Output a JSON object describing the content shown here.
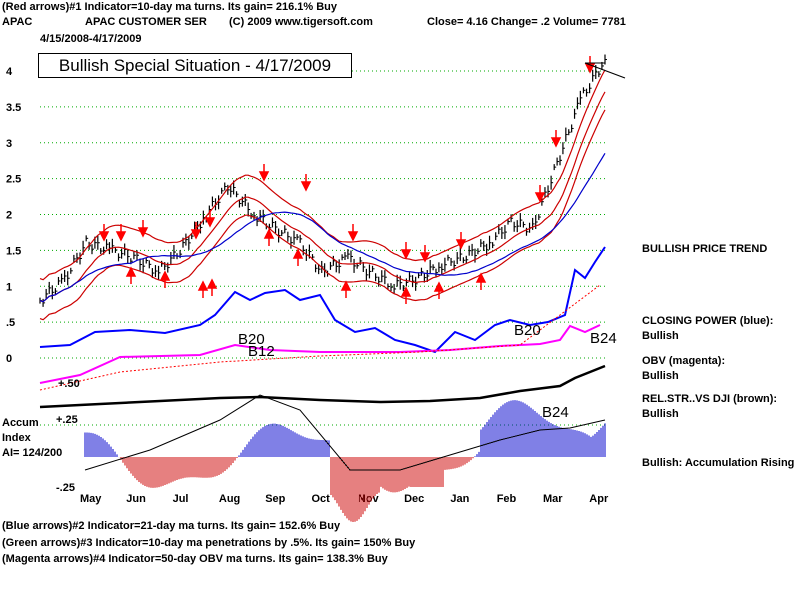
{
  "header": {
    "line1": "(Red arrows)#1 Indicator=10-day ma turns. Its gain= 216.1% Buy",
    "symbol": "APAC",
    "company": "APAC CUSTOMER SER",
    "copyright": "(C) 2009 www.tigersoft.com",
    "quote": "Close=  4.16  Change= .2 Volume= 7781",
    "date_range": "4/15/2008-4/17/2009"
  },
  "signal_box": "Bullish Special Situation - 4/17/2009",
  "footer": [
    "(Blue arrows)#2 Indicator=21-day ma turns. Its gain= 152.6% Buy",
    "(Green arrows)#3 Indicator=10-day ma penetrations by .5%. Its gain= 150% Buy",
    "(Magenta arrows)#4 Indicator=50-day OBV ma turns. Its gain= 138.3% Buy"
  ],
  "right_labels": {
    "trend": "BULLISH PRICE TREND",
    "cp_label": "CLOSING POWER (blue):",
    "cp_value": "Bullish",
    "obv_label": "OBV (magenta):",
    "obv_value": "Bullish",
    "rel_label": "REL.STR..VS DJI (brown):",
    "rel_value": "Bullish",
    "accum_status": "Bullish: Accumulation Rising"
  },
  "accum_labels": {
    "title1": "Accum",
    "title2": "Index",
    "ai": "AI= 124/200",
    "plus25": "+.25",
    "minus25": "-.25",
    "plus50": "+.50"
  },
  "signals": {
    "b20a": "B20",
    "b12": "B12",
    "b20b": "B20",
    "b24a": "B24",
    "b24b": "B24"
  },
  "colors": {
    "price_bar": "#000000",
    "ma_red": "#cc0000",
    "ma_blue": "#0000cc",
    "closing_power": "#0000ff",
    "obv": "#ff00ff",
    "rel_strength": "#000000",
    "accum_pos": "#0000cc",
    "accum_neg": "#cc0000",
    "grid": "#00aa00",
    "arrow_red": "#ff0000"
  },
  "chart_data": {
    "type": "line",
    "title": "APAC CUSTOMER SER",
    "ylabel": "",
    "y_ticks": [
      4,
      3.5,
      3,
      2.5,
      2,
      1.5,
      1,
      0.5,
      0
    ],
    "y_tick_labels": [
      "4",
      "3.5",
      "3",
      "2.5",
      "2",
      "1.5",
      "1",
      ".5",
      "0"
    ],
    "ylim": [
      0,
      4.25
    ],
    "x_ticks": [
      "May",
      "Jun",
      "Jul",
      "Aug",
      "Sep",
      "Oct",
      "Nov",
      "Dec",
      "Jan",
      "Feb",
      "Mar",
      "Apr"
    ],
    "series": [
      {
        "type": "price",
        "x": [
          "2008-04-15",
          "2008-05-01",
          "2008-05-15",
          "2008-06-01",
          "2008-06-15",
          "2008-07-01",
          "2008-07-15",
          "2008-08-01",
          "2008-08-15",
          "2008-09-01",
          "2008-09-15",
          "2008-10-01",
          "2008-10-15",
          "2008-11-01",
          "2008-11-15",
          "2008-12-01",
          "2008-12-15",
          "2009-01-01",
          "2009-01-15",
          "2009-02-01",
          "2009-02-15",
          "2009-03-01",
          "2009-03-15",
          "2009-04-01",
          "2009-04-17"
        ],
        "values": [
          0.8,
          1.1,
          1.6,
          1.5,
          1.4,
          1.2,
          1.5,
          2.0,
          2.4,
          2.0,
          1.8,
          1.6,
          1.2,
          1.4,
          1.2,
          1.0,
          1.1,
          1.3,
          1.4,
          1.6,
          1.9,
          1.8,
          2.6,
          3.6,
          4.16
        ]
      }
    ]
  }
}
